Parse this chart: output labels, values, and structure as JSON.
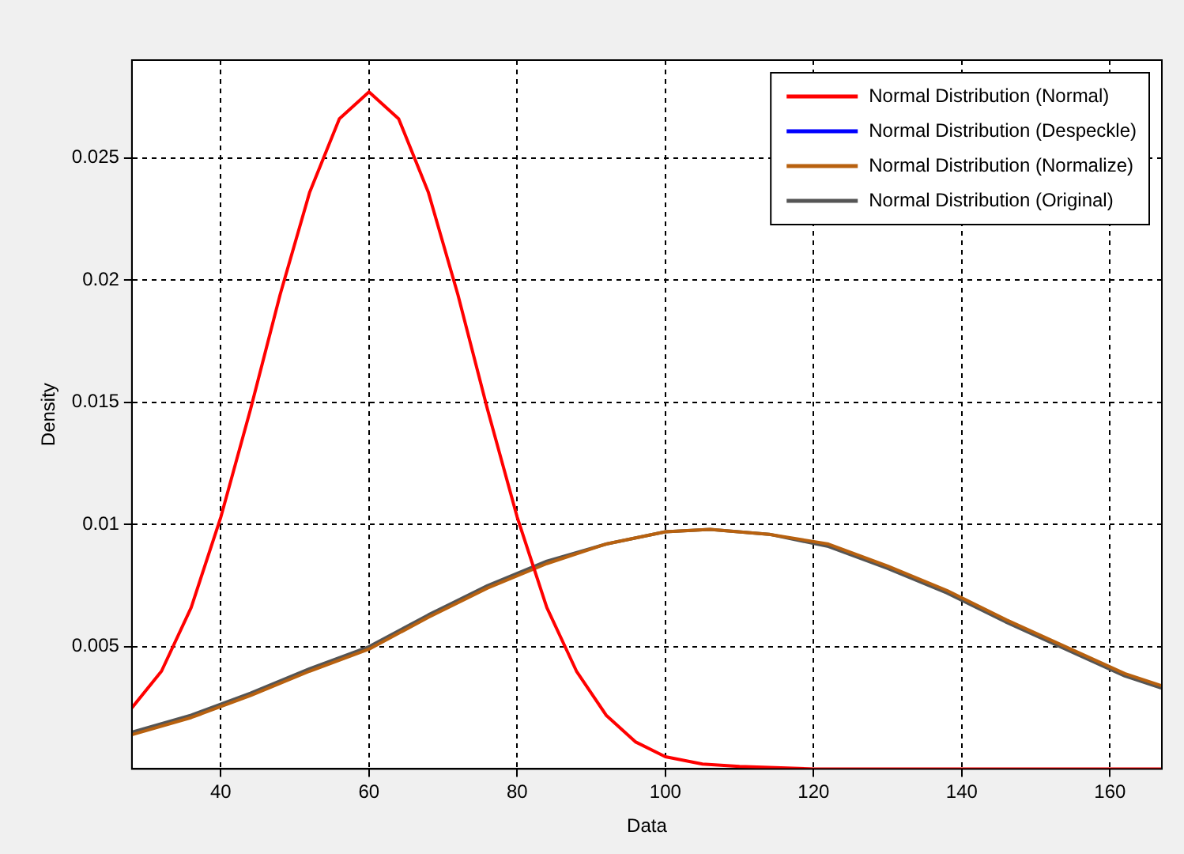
{
  "chart_data": {
    "type": "line",
    "xlabel": "Data",
    "ylabel": "Density",
    "xlim": [
      28,
      167
    ],
    "xticks": [
      40,
      60,
      80,
      100,
      120,
      140,
      160
    ],
    "ylim": [
      0,
      0.029
    ],
    "yticks": [
      0.005,
      0.01,
      0.015,
      0.02,
      0.025
    ],
    "grid": true,
    "legend": "top right",
    "marker": "none",
    "line_style": "solid",
    "series": [
      {
        "name": "Normal Distribution (Normal)",
        "color": "#ff0000",
        "x": [
          28,
          32,
          36,
          40,
          44,
          48,
          52,
          56,
          60,
          64,
          68,
          72,
          76,
          80,
          84,
          88,
          92,
          96,
          100,
          105,
          110,
          120,
          130,
          140,
          150,
          160,
          167
        ],
        "values": [
          0.0025,
          0.004,
          0.0066,
          0.0103,
          0.0147,
          0.0194,
          0.0236,
          0.0266,
          0.0277,
          0.0266,
          0.0236,
          0.0194,
          0.0147,
          0.0103,
          0.0066,
          0.004,
          0.0022,
          0.0011,
          0.0005,
          0.0002,
          0.0001,
          0,
          0,
          0,
          0,
          0,
          0
        ]
      },
      {
        "name": "Normal Distribution (Despeckle)",
        "color": "#0000ff"
      },
      {
        "name": "Normal Distribution (Normalize)",
        "color": "#b8610f",
        "x": [
          28,
          36,
          44,
          52,
          60,
          68,
          76,
          84,
          92,
          100,
          106,
          114,
          122,
          130,
          138,
          146,
          154,
          162,
          167
        ],
        "values": [
          0.0014,
          0.0021,
          0.003,
          0.004,
          0.0049,
          0.0062,
          0.0074,
          0.0084,
          0.0092,
          0.0097,
          0.0098,
          0.0096,
          0.0092,
          0.0083,
          0.0073,
          0.0061,
          0.005,
          0.0039,
          0.0034
        ]
      },
      {
        "name": "Normal Distribution (Original)",
        "color": "#555555",
        "x": [
          28,
          36,
          44,
          52,
          60,
          68,
          76,
          84,
          92,
          100,
          106,
          114,
          122,
          130,
          138,
          146,
          154,
          162,
          167
        ],
        "values": [
          0.0015,
          0.0022,
          0.0031,
          0.0041,
          0.005,
          0.0063,
          0.0075,
          0.0085,
          0.0092,
          0.0097,
          0.0098,
          0.0096,
          0.0091,
          0.0082,
          0.0072,
          0.006,
          0.0049,
          0.0038,
          0.0033
        ]
      }
    ]
  }
}
